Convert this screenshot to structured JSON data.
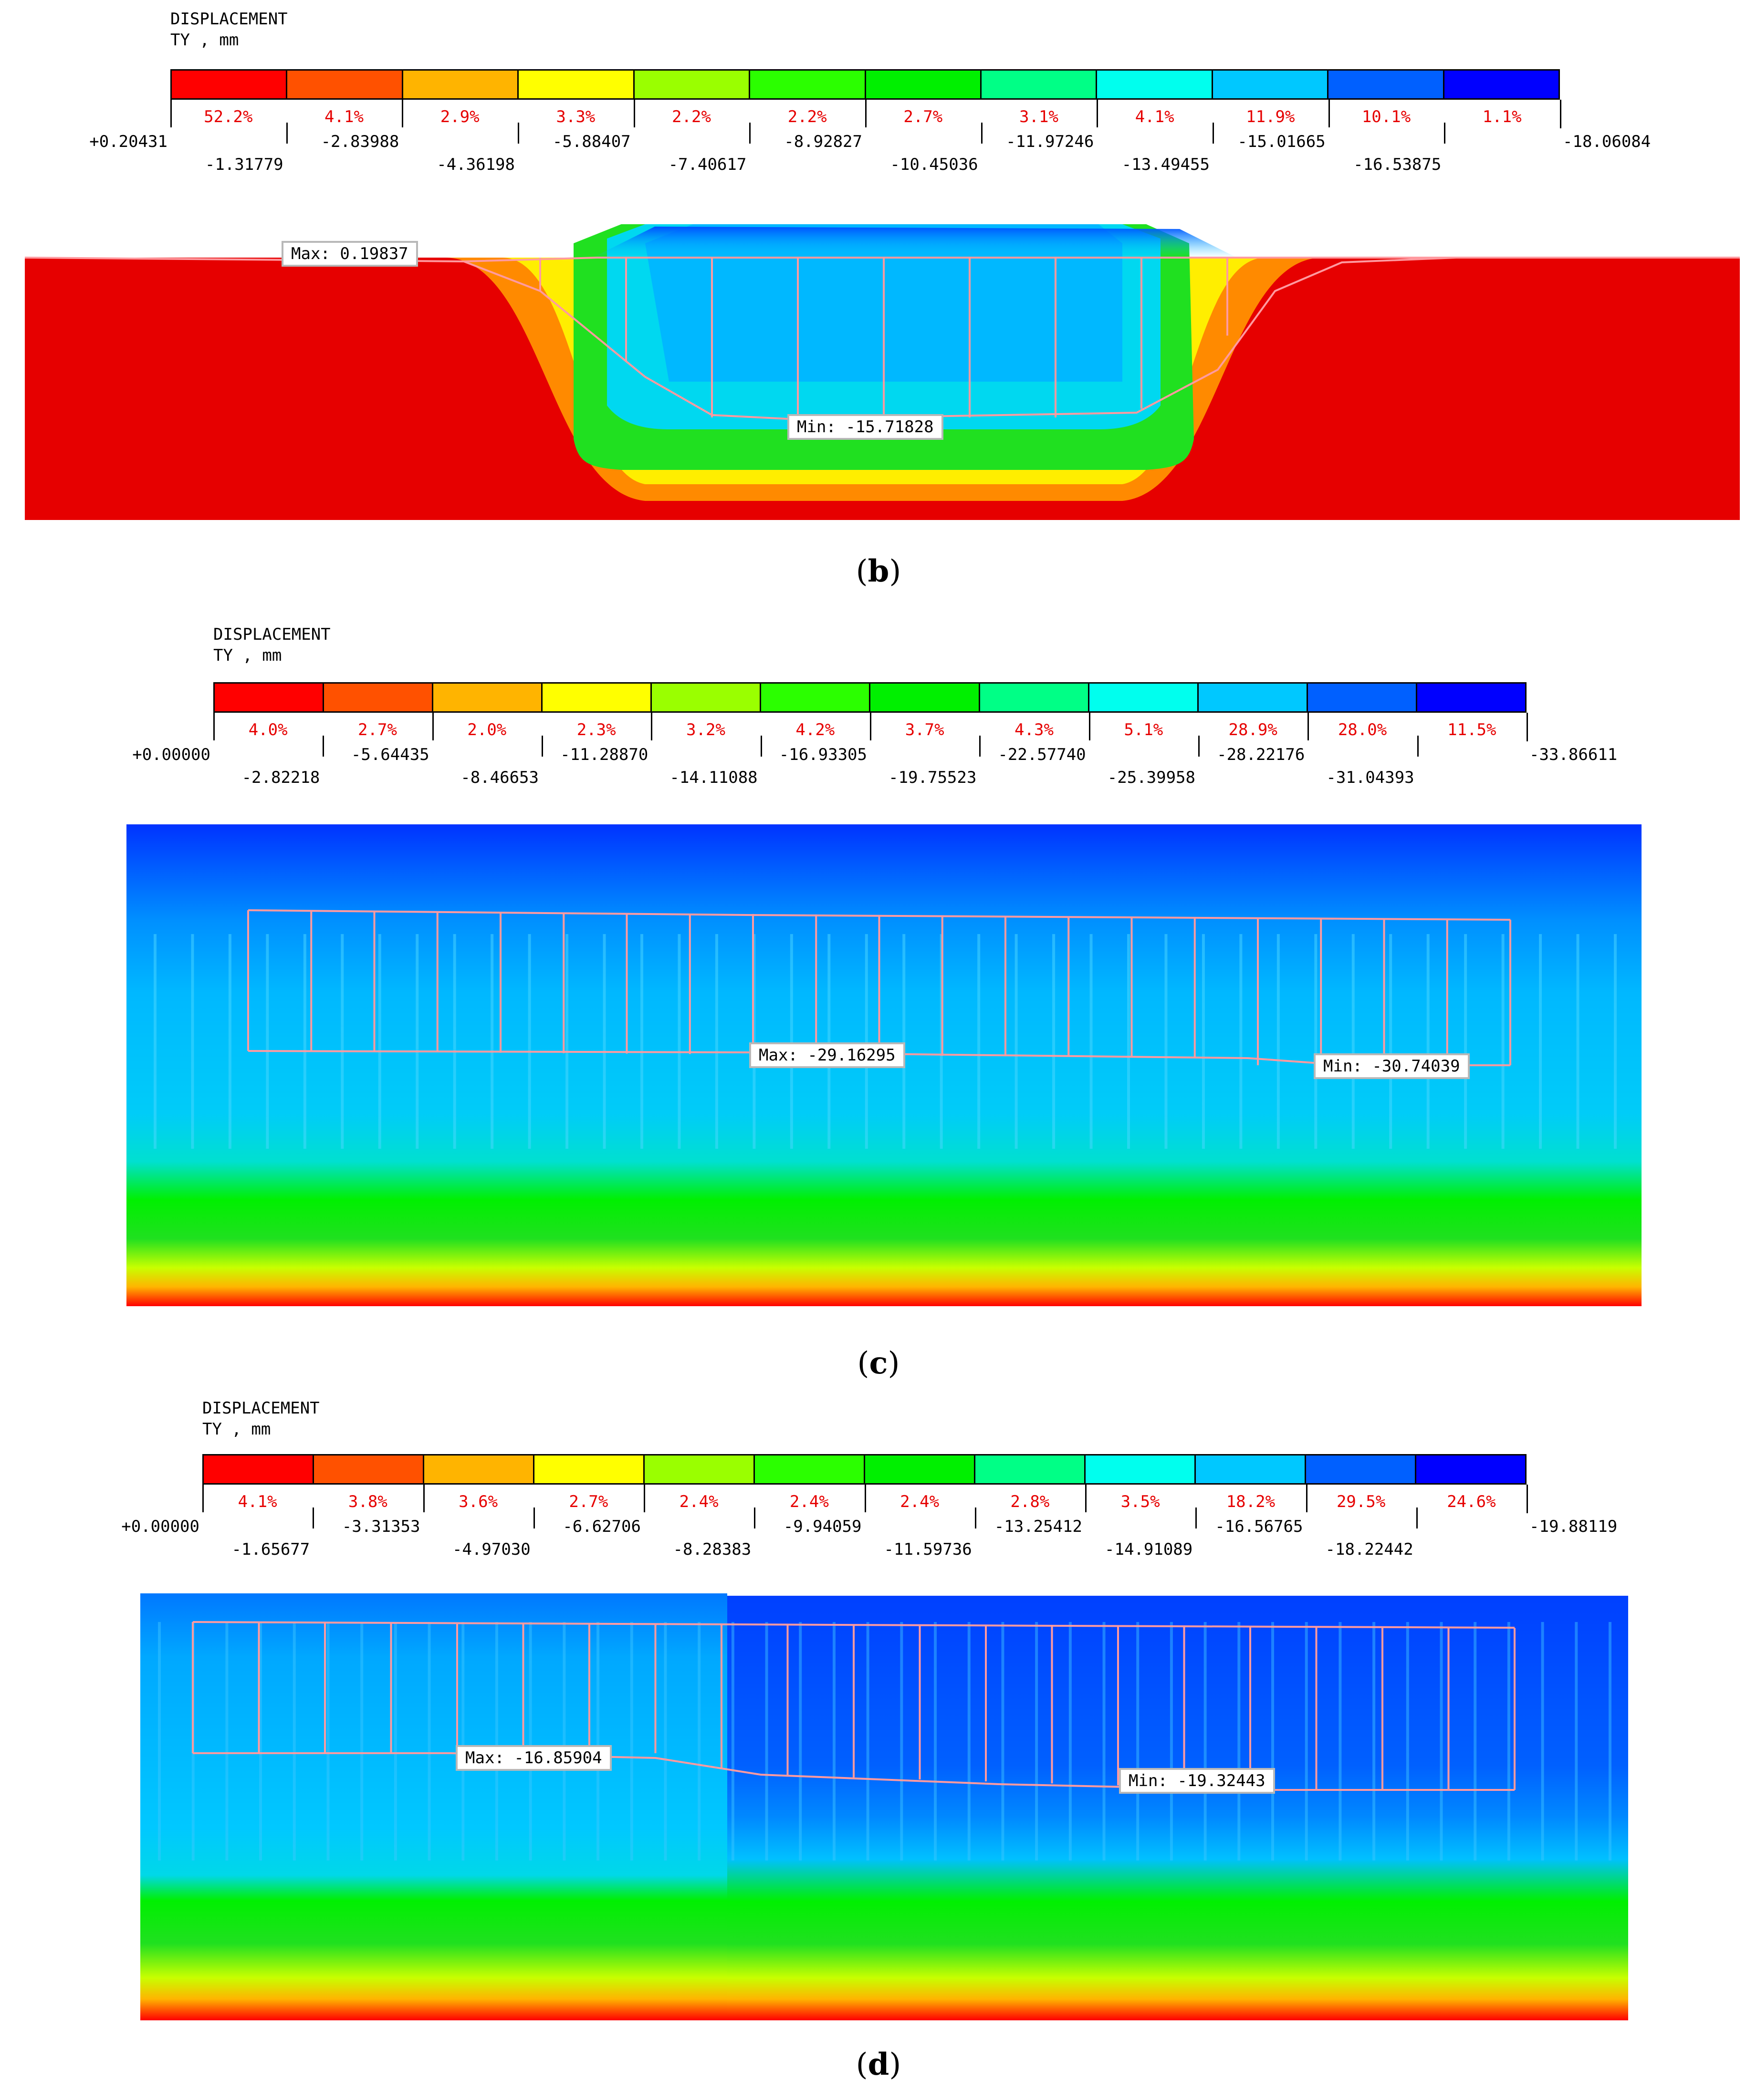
{
  "palette": [
    "#ff0000",
    "#ff5100",
    "#ffb400",
    "#ffff00",
    "#9aff00",
    "#2bff00",
    "#00f000",
    "#00ff86",
    "#00ffee",
    "#00c8ff",
    "#0060ff",
    "#0000ff"
  ],
  "panels": [
    {
      "id": "b",
      "title_line1": "DISPLACEMENT",
      "title_line2": "TY , mm",
      "percents": [
        "52.2%",
        "4.1%",
        "2.9%",
        "3.3%",
        "2.2%",
        "2.2%",
        "2.7%",
        "3.1%",
        "4.1%",
        "11.9%",
        "10.1%",
        "1.1%"
      ],
      "values": [
        "+0.20431",
        "-1.31779",
        "-2.83988",
        "-4.36198",
        "-5.88407",
        "-7.40617",
        "-8.92827",
        "-10.45036",
        "-11.97246",
        "-13.49455",
        "-15.01665",
        "-16.53875",
        "-18.06084"
      ],
      "max_label": "Max: 0.19837",
      "min_label": "Min: -15.71828",
      "caption_open": "(",
      "caption_letter": "b",
      "caption_close": ")"
    },
    {
      "id": "c",
      "title_line1": "DISPLACEMENT",
      "title_line2": "TY , mm",
      "percents": [
        "4.0%",
        "2.7%",
        "2.0%",
        "2.3%",
        "3.2%",
        "4.2%",
        "3.7%",
        "4.3%",
        "5.1%",
        "28.9%",
        "28.0%",
        "11.5%"
      ],
      "values": [
        "+0.00000",
        "-2.82218",
        "-5.64435",
        "-8.46653",
        "-11.28870",
        "-14.11088",
        "-16.93305",
        "-19.75523",
        "-22.57740",
        "-25.39958",
        "-28.22176",
        "-31.04393",
        "-33.86611"
      ],
      "max_label": "Max: -29.16295",
      "min_label": "Min: -30.74039",
      "caption_open": "(",
      "caption_letter": "c",
      "caption_close": ")"
    },
    {
      "id": "d",
      "title_line1": "DISPLACEMENT",
      "title_line2": "TY , mm",
      "percents": [
        "4.1%",
        "3.8%",
        "3.6%",
        "2.7%",
        "2.4%",
        "2.4%",
        "2.4%",
        "2.8%",
        "3.5%",
        "18.2%",
        "29.5%",
        "24.6%"
      ],
      "values": [
        "+0.00000",
        "-1.65677",
        "-3.31353",
        "-4.97030",
        "-6.62706",
        "-8.28383",
        "-9.94059",
        "-11.59736",
        "-13.25412",
        "-14.91089",
        "-16.56765",
        "-18.22442",
        "-19.88119"
      ],
      "max_label": "Max: -16.85904",
      "min_label": "Min: -19.32443",
      "caption_open": "(",
      "caption_letter": "d",
      "caption_close": ")"
    }
  ]
}
